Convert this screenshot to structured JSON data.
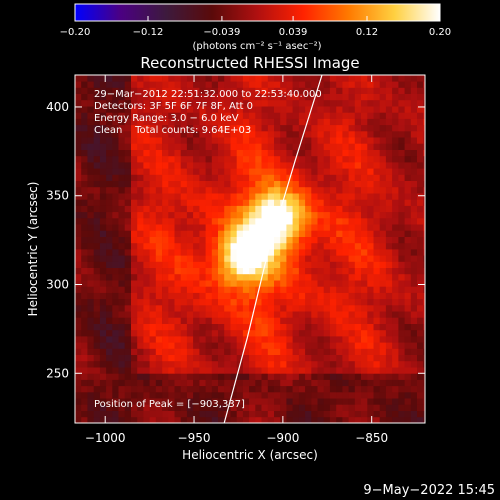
{
  "chart_data": {
    "type": "heatmap",
    "title": "Reconstructed RHESSI Image",
    "xlabel": "Heliocentric X (arcsec)",
    "ylabel": "Heliocentric Y (arcsec)",
    "xlim": [
      -1017,
      -820
    ],
    "ylim": [
      222,
      418
    ],
    "x_ticks": [
      -1000,
      -950,
      -900,
      -850
    ],
    "x_tick_labels": [
      "−1000",
      "−950",
      "−900",
      "−850"
    ],
    "y_ticks": [
      250,
      300,
      350,
      400
    ],
    "y_tick_labels": [
      "250",
      "300",
      "350",
      "400"
    ],
    "colorbar": {
      "range": [
        -0.2,
        0.2
      ],
      "ticks": [
        -0.2,
        -0.12,
        -0.039,
        0.039,
        0.12,
        0.2
      ],
      "tick_labels": [
        "−0.20",
        "−0.12",
        "−0.039",
        "0.039",
        "0.12",
        "0.20"
      ],
      "unit_label": "(photons cm⁻² s⁻¹ asec⁻²)",
      "colormap": [
        "#0000ff",
        "#4b0082",
        "#3d1a3d",
        "#5a0a0a",
        "#b01010",
        "#ff2200",
        "#ff7a00",
        "#ffd040",
        "#ffffff"
      ]
    },
    "annotations": [
      "29−Mar−2012 22:51:32.000 to 22:53:40.000",
      "Detectors: 3F 5F 6F 7F 8F, Att 0",
      "Energy Range: 3.0 − 6.0 keV",
      "Clean    Total counts: 9.64E+03"
    ],
    "peak_label": "Position of Peak = [−903,337]",
    "sources": [
      {
        "x": -903,
        "y": 337,
        "peak": 0.2
      },
      {
        "x": -923,
        "y": 315,
        "peak": 0.17
      }
    ],
    "limb_curve": [
      [
        -933,
        222
      ],
      [
        -920,
        270
      ],
      [
        -908,
        320
      ],
      [
        -893,
        370
      ],
      [
        -878,
        418
      ]
    ]
  },
  "footer": {
    "date_stamp": "9−May−2022 15:45"
  }
}
